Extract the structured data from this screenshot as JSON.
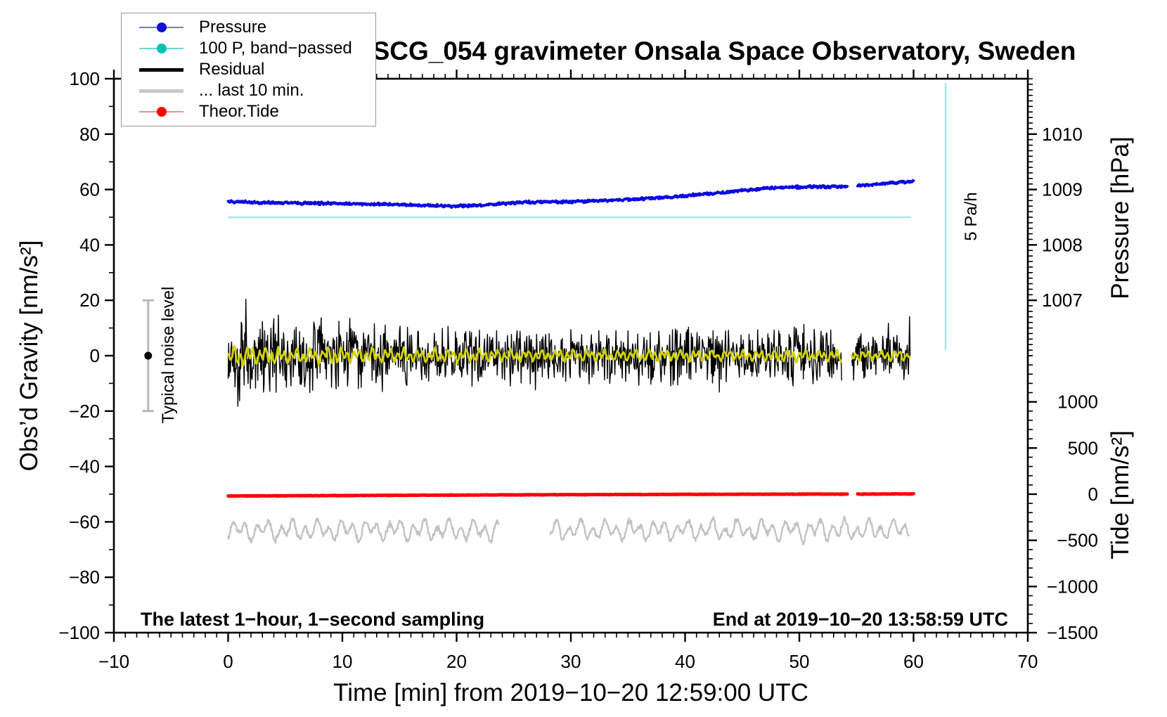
{
  "chart_data": {
    "type": "line",
    "title": "SCG_054 gravimeter Onsala Space Observatory, Sweden",
    "xlabel": "Time [min] from 2019−10−20 12:59:00 UTC",
    "ylabel_left": "Obs’d Gravity [nm/s²]",
    "ylabel_pressure": "Pressure [hPa]",
    "ylabel_tide": "Tide [nm/s²]",
    "annotations": {
      "noise_label": "Typical noise level",
      "rate_label": "5 Pa/h",
      "sampling_note": "The latest 1−hour, 1−second sampling",
      "end_note": "End at 2019−10−20 13:58:59 UTC"
    },
    "axes": {
      "x": {
        "lim": [
          -10,
          70
        ],
        "major": [
          -10,
          0,
          10,
          20,
          30,
          40,
          50,
          60,
          70
        ],
        "minor_step": 1
      },
      "y_left": {
        "lim": [
          -100,
          100
        ],
        "major": [
          -100,
          -80,
          -60,
          -40,
          -20,
          0,
          20,
          40,
          60,
          80,
          100
        ],
        "minor_step": 10
      },
      "y_pressure": {
        "ticks": [
          1007,
          1008,
          1009,
          1010
        ],
        "minor_range": [
          1006,
          1011
        ],
        "minor_step": 0.1,
        "anchor": {
          "p0": 1009,
          "g0": 60,
          "g_per_hpa": 20
        }
      },
      "y_tide": {
        "ticks": [
          -1500,
          -1000,
          -500,
          0,
          500,
          1000
        ],
        "minor_range": [
          -1500,
          1500
        ],
        "minor_step": 100,
        "anchor": {
          "t0": 0,
          "g0": -50,
          "g_per_unit": 0.0333333
        }
      }
    },
    "noise_bar": {
      "x": -7,
      "center": 0,
      "half_range": 20,
      "bar_color": "#b9b9b9",
      "dot_color": "#000000"
    },
    "series": [
      {
        "id": "band_passed",
        "name": "100 P, band−passed",
        "kind": "hline",
        "color": "#aae7e9",
        "width": 2.5,
        "gravity": 50,
        "range": [
          0,
          59.8
        ]
      },
      {
        "id": "rate_bar",
        "name": "5 Pa/h scale bar",
        "kind": "vline",
        "color": "#aae7e9",
        "width": 2.5,
        "x": 62.8,
        "gravity_range": [
          2,
          98.5
        ]
      },
      {
        "id": "last10",
        "name": "... last 10 min.",
        "kind": "smooth_wave",
        "color": "#c2c2c2",
        "width": 2.4,
        "center": -63,
        "amp": [
          [
            0,
            3.3
          ],
          [
            59.6,
            3.3
          ]
        ],
        "periods": [
          1.05,
          2.3
        ],
        "segments": [
          [
            0,
            23.7
          ],
          [
            28.2,
            59.6
          ]
        ]
      },
      {
        "id": "tide",
        "name": "Theor.Tide",
        "kind": "noisy_keypoints",
        "color": "#ff0000",
        "width": 4.8,
        "unit": "tide",
        "jitter": 0.08,
        "range": [
          0,
          60
        ],
        "gap": [
          54.2,
          55.1
        ],
        "keypoints": [
          [
            0,
            -20
          ],
          [
            10,
            -15
          ],
          [
            20,
            -10
          ],
          [
            30,
            -5
          ],
          [
            40,
            -2
          ],
          [
            50,
            0
          ],
          [
            54.2,
            1
          ],
          [
            55.1,
            1
          ],
          [
            60,
            3
          ]
        ]
      },
      {
        "id": "pressure",
        "name": "Pressure",
        "kind": "noisy_keypoints",
        "color": "#0a0ae0",
        "width": 3.8,
        "unit": "hPa",
        "jitter": 0.38,
        "range": [
          0,
          60
        ],
        "gap": [
          54.2,
          55.1
        ],
        "keypoints": [
          [
            0,
            1008.78
          ],
          [
            4,
            1008.76
          ],
          [
            8,
            1008.75
          ],
          [
            12,
            1008.74
          ],
          [
            16,
            1008.72
          ],
          [
            20,
            1008.7
          ],
          [
            23,
            1008.73
          ],
          [
            26,
            1008.77
          ],
          [
            30,
            1008.78
          ],
          [
            33,
            1008.8
          ],
          [
            36,
            1008.83
          ],
          [
            39,
            1008.87
          ],
          [
            42,
            1008.92
          ],
          [
            45,
            1008.98
          ],
          [
            47,
            1009.02
          ],
          [
            49,
            1009.04
          ],
          [
            51,
            1009.05
          ],
          [
            53,
            1009.05
          ],
          [
            54.2,
            1009.06
          ],
          [
            55.1,
            1009.07
          ],
          [
            56,
            1009.08
          ],
          [
            58,
            1009.12
          ],
          [
            60,
            1009.15
          ]
        ]
      },
      {
        "id": "residual",
        "name": "Residual",
        "kind": "noise_band",
        "color": "#000000",
        "width": 1.4,
        "center": 0,
        "range": [
          0,
          59.7
        ],
        "gap": [
          53.7,
          54.6
        ],
        "spike_chance": 0.03,
        "envelope": [
          [
            0,
            9
          ],
          [
            0.7,
            12
          ],
          [
            1.2,
            17
          ],
          [
            1.6,
            15
          ],
          [
            2.2,
            12
          ],
          [
            3,
            11
          ],
          [
            5,
            10.5
          ],
          [
            8,
            10
          ],
          [
            12,
            9
          ],
          [
            16,
            8.5
          ],
          [
            20,
            8.5
          ],
          [
            25,
            8
          ],
          [
            30,
            7.8
          ],
          [
            35,
            7.6
          ],
          [
            40,
            7.8
          ],
          [
            45,
            7.6
          ],
          [
            50,
            7.4
          ],
          [
            53.7,
            7.4
          ],
          [
            54.6,
            7.4
          ],
          [
            59.7,
            7.4
          ]
        ]
      },
      {
        "id": "residual_smooth",
        "name": "smoothed residual",
        "kind": "smooth_wave",
        "color": "#d2d200",
        "width": 2.8,
        "center": 0,
        "amp": [
          [
            0,
            3.1
          ],
          [
            5,
            2.5
          ],
          [
            15,
            2.0
          ],
          [
            30,
            1.7
          ],
          [
            59.7,
            1.6
          ]
        ],
        "periods": [
          0.55,
          1.35
        ],
        "range": [
          0,
          59.7
        ],
        "gap": [
          53.7,
          54.6
        ]
      }
    ]
  },
  "legend": {
    "items": [
      {
        "label": "Pressure",
        "line_color": "#7878e0",
        "line_width": 2,
        "dot_color": "#1212d2"
      },
      {
        "label": "100 P, band−passed",
        "line_color": "#6fd8d4",
        "line_width": 2,
        "dot_color": "#00c0b8"
      },
      {
        "label": "Residual",
        "line_color": "#000000",
        "line_width": 5,
        "dot_color": null
      },
      {
        "label": "... last 10 min.",
        "line_color": "#c8c8c8",
        "line_width": 5,
        "dot_color": null
      },
      {
        "label": "Theor.Tide",
        "line_color": "#ff8888",
        "line_width": 2,
        "dot_color": "#ff0000"
      }
    ]
  }
}
